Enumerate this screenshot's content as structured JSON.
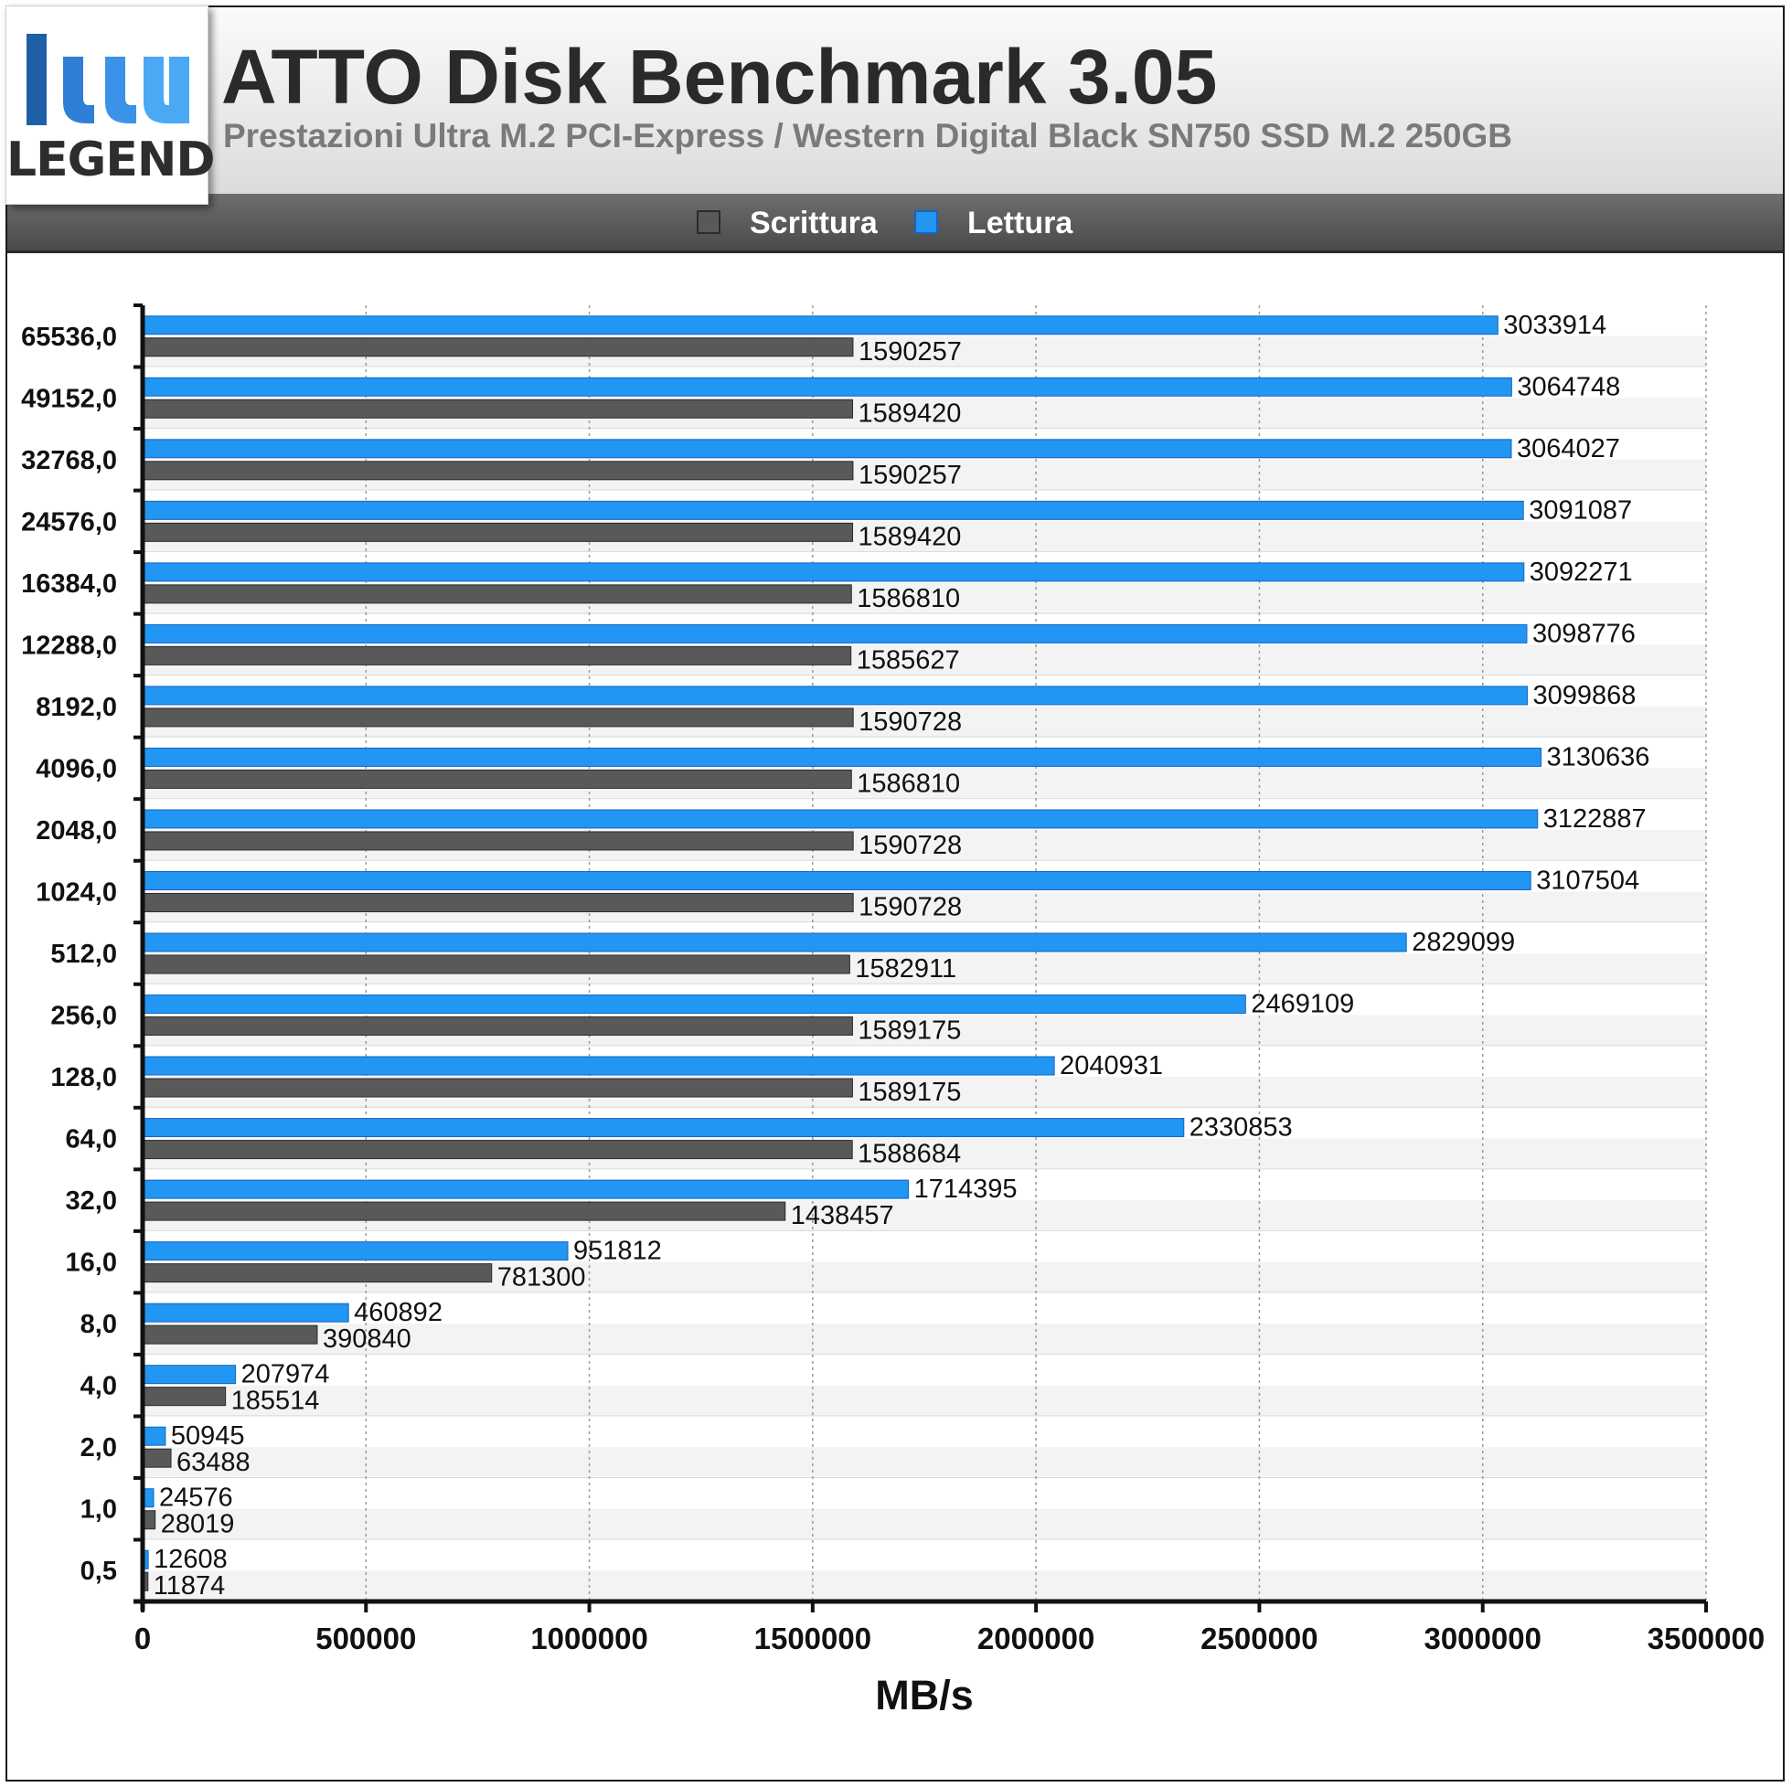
{
  "header": {
    "logo_text": "LEGEND",
    "title": "ATTO Disk Benchmark 3.05",
    "subtitle": "Prestazioni Ultra M.2 PCI-Express / Western Digital Black SN750 SSD M.2 250GB"
  },
  "legend": {
    "items": [
      {
        "label": "Scrittura",
        "color": "#595959"
      },
      {
        "label": "Lettura",
        "color": "#2196f3"
      }
    ]
  },
  "chart_data": {
    "type": "bar",
    "orientation": "horizontal",
    "title": "ATTO Disk Benchmark 3.05",
    "subtitle": "Prestazioni Ultra M.2 PCI-Express / Western Digital Black SN750 SSD M.2 250GB",
    "xlabel": "MB/s",
    "ylabel": "",
    "xlim": [
      0,
      3500000
    ],
    "x_ticks": [
      "0",
      "500000",
      "1000000",
      "1500000",
      "2000000",
      "2500000",
      "3000000",
      "3500000"
    ],
    "grid": "vertical dashed",
    "legend_position": "top-center",
    "categories": [
      "65536,0",
      "49152,0",
      "32768,0",
      "24576,0",
      "16384,0",
      "12288,0",
      "8192,0",
      "4096,0",
      "2048,0",
      "1024,0",
      "512,0",
      "256,0",
      "128,0",
      "64,0",
      "32,0",
      "16,0",
      "8,0",
      "4,0",
      "2,0",
      "1,0",
      "0,5"
    ],
    "series": [
      {
        "name": "Lettura",
        "color": "#2196f3",
        "values": [
          3033914,
          3064748,
          3064027,
          3091087,
          3092271,
          3098776,
          3099868,
          3130636,
          3122887,
          3107504,
          2829099,
          2469109,
          2040931,
          2330853,
          1714395,
          951812,
          460892,
          207974,
          50945,
          24576,
          12608
        ]
      },
      {
        "name": "Scrittura",
        "color": "#595959",
        "values": [
          1590257,
          1589420,
          1590257,
          1589420,
          1586810,
          1585627,
          1590728,
          1586810,
          1590728,
          1590728,
          1582911,
          1589175,
          1589175,
          1588684,
          1438457,
          781300,
          390840,
          185514,
          63488,
          28019,
          11874
        ]
      }
    ]
  }
}
